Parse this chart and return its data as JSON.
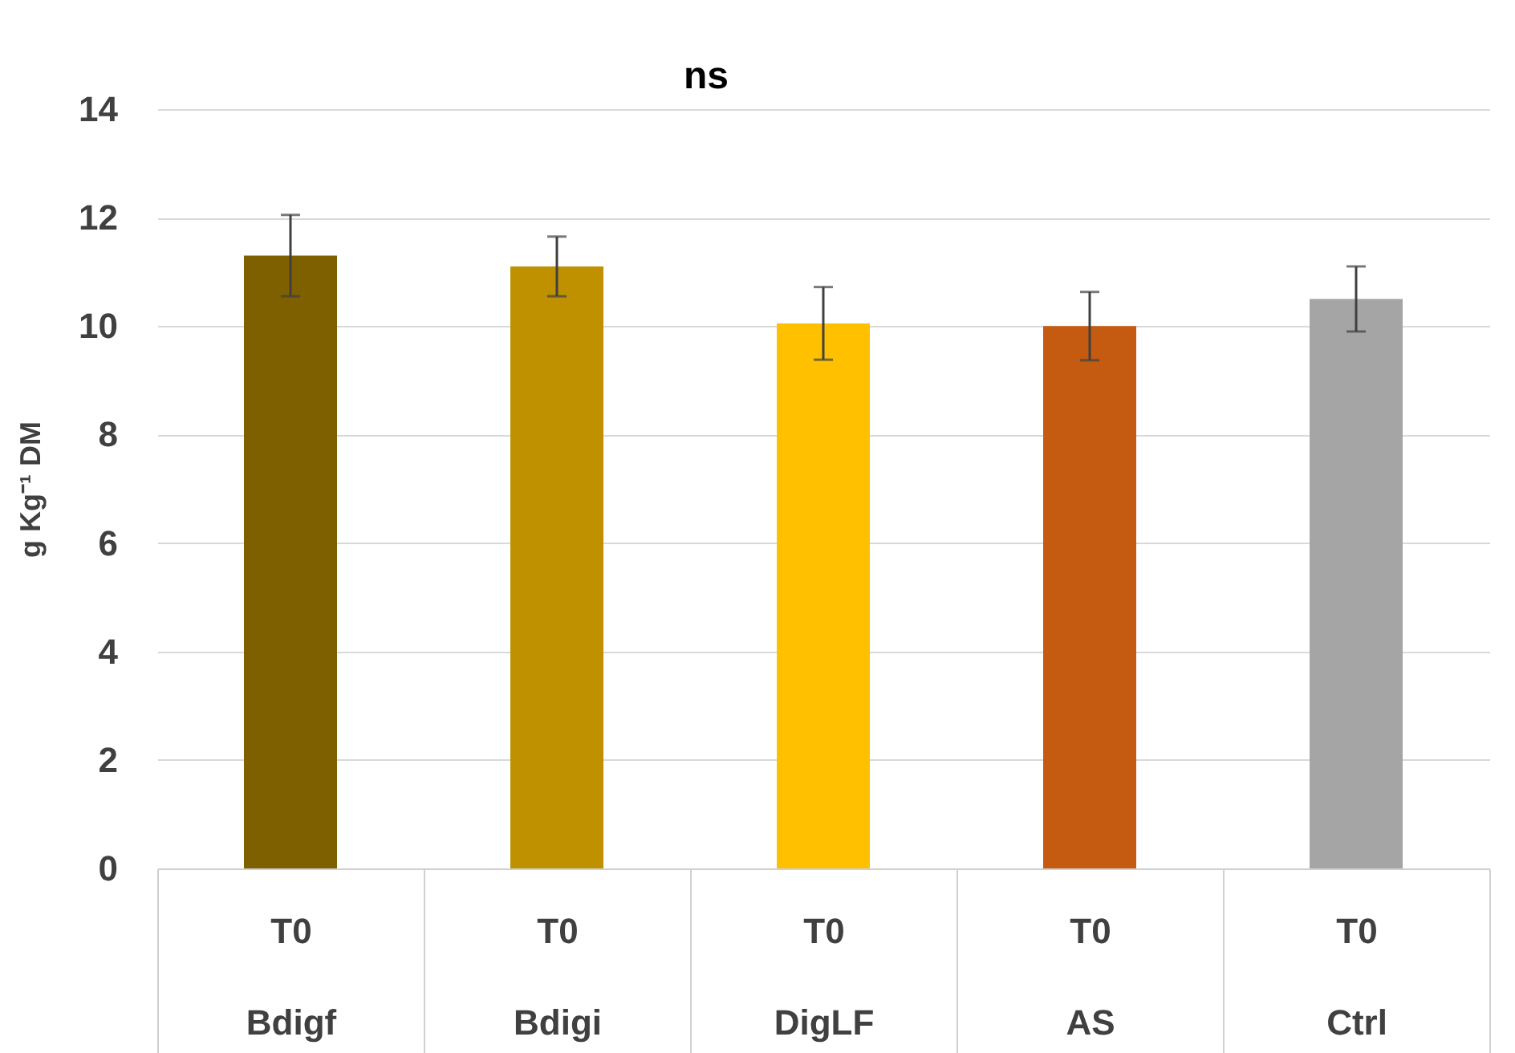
{
  "chart_data": {
    "type": "bar",
    "ylabel": "g Kg⁻¹ DM",
    "annotations": [
      "ns"
    ],
    "categories": [
      "T0\nBdigf",
      "T0\nBdigi",
      "T0\nDigLF",
      "T0\nAS",
      "T0\nCtrl"
    ],
    "values": [
      11.3,
      11.1,
      10.05,
      10.0,
      10.5
    ],
    "errors": [
      0.75,
      0.55,
      0.67,
      0.63,
      0.6
    ],
    "colors": [
      "#7f6000",
      "#bf9000",
      "#ffc000",
      "#c55a11",
      "#a5a5a5"
    ],
    "ylim": [
      0,
      14
    ],
    "yticks": [
      0,
      2,
      4,
      6,
      8,
      10,
      12,
      14
    ],
    "grid": "y"
  }
}
